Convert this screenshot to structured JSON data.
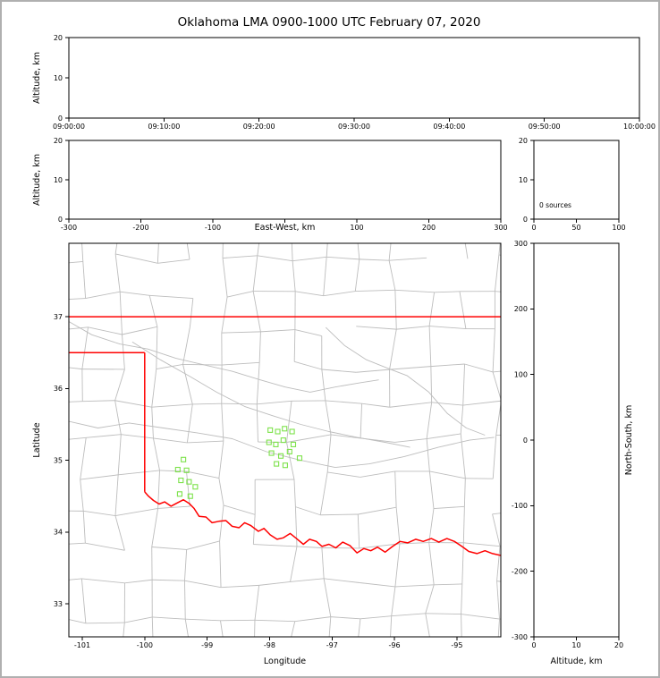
{
  "title": "Oklahoma LMA 0900-1000 UTC February 07, 2020",
  "colors": {
    "axis": "#000000",
    "county": "#bdbdbd",
    "state_border": "#ff0000",
    "marker": "#7de24b",
    "figure_border": "#b0b0b0"
  },
  "chart_data": [
    {
      "id": "time_height",
      "type": "scatter",
      "ylabel": "Altitude, km",
      "xlim": [
        0,
        3600
      ],
      "x_ticks": [
        0,
        600,
        1200,
        1800,
        2400,
        3000,
        3600
      ],
      "x_tick_labels": [
        "09:00:00",
        "09:10:00",
        "09:20:00",
        "09:30:00",
        "09:40:00",
        "09:50:00",
        "10:00:00"
      ],
      "ylim": [
        0,
        20
      ],
      "y_ticks": [
        0,
        10,
        20
      ],
      "points": []
    },
    {
      "id": "ew_height",
      "type": "scatter",
      "xlabel": "East-West, km",
      "xlabel_inline": true,
      "ylabel": "Altitude, km",
      "xlim": [
        -300,
        300
      ],
      "x_ticks": [
        -300,
        -200,
        -100,
        0,
        100,
        200,
        300
      ],
      "x_tick_labels": [
        "-300",
        "-200",
        "-100",
        "",
        "100",
        "200",
        "300"
      ],
      "ylim": [
        0,
        20
      ],
      "y_ticks": [
        0,
        10,
        20
      ],
      "points": []
    },
    {
      "id": "alt_hist",
      "type": "histogram",
      "annotation": "0 sources",
      "xlim": [
        0,
        100
      ],
      "x_ticks": [
        0,
        50,
        100
      ],
      "ylim": [
        0,
        20
      ],
      "y_ticks": [
        0,
        10,
        20
      ],
      "values": []
    },
    {
      "id": "map",
      "type": "scatter",
      "xlabel": "Longitude",
      "ylabel": "Latitude",
      "xlim": [
        -101.215,
        -94.297
      ],
      "ylim": [
        32.54,
        38.023
      ],
      "x_ticks": [
        -101,
        -100,
        -99,
        -98,
        -97,
        -96,
        -95
      ],
      "y_ticks": [
        33,
        34,
        35,
        36,
        37
      ],
      "points": [
        [
          -99.38,
          35.01
        ],
        [
          -99.47,
          34.87
        ],
        [
          -99.33,
          34.86
        ],
        [
          -99.42,
          34.72
        ],
        [
          -99.29,
          34.7
        ],
        [
          -99.19,
          34.63
        ],
        [
          -99.44,
          34.53
        ],
        [
          -99.27,
          34.5
        ],
        [
          -97.99,
          35.42
        ],
        [
          -97.87,
          35.4
        ],
        [
          -97.76,
          35.44
        ],
        [
          -97.64,
          35.4
        ],
        [
          -98.01,
          35.25
        ],
        [
          -97.9,
          35.22
        ],
        [
          -97.78,
          35.28
        ],
        [
          -97.62,
          35.22
        ],
        [
          -97.97,
          35.1
        ],
        [
          -97.82,
          35.06
        ],
        [
          -97.68,
          35.12
        ],
        [
          -97.52,
          35.03
        ],
        [
          -97.89,
          34.95
        ],
        [
          -97.75,
          34.93
        ]
      ],
      "state_border": [
        [
          [
            -101.215,
            37.0
          ],
          [
            -94.297,
            37.0
          ]
        ],
        [
          [
            -101.215,
            36.5
          ],
          [
            -100.0,
            36.5
          ]
        ],
        [
          [
            -100.0,
            36.5
          ],
          [
            -100.0,
            34.56
          ]
        ],
        [
          [
            -100.0,
            34.56
          ],
          [
            -99.94,
            34.5
          ],
          [
            -99.86,
            34.44
          ],
          [
            -99.77,
            34.39
          ],
          [
            -99.68,
            34.42
          ],
          [
            -99.58,
            34.36
          ],
          [
            -99.47,
            34.41
          ],
          [
            -99.38,
            34.45
          ],
          [
            -99.29,
            34.4
          ],
          [
            -99.21,
            34.33
          ],
          [
            -99.13,
            34.22
          ],
          [
            -99.02,
            34.21
          ],
          [
            -98.92,
            34.13
          ],
          [
            -98.81,
            34.15
          ],
          [
            -98.7,
            34.16
          ],
          [
            -98.6,
            34.08
          ],
          [
            -98.49,
            34.06
          ],
          [
            -98.4,
            34.13
          ],
          [
            -98.3,
            34.09
          ],
          [
            -98.18,
            34.01
          ],
          [
            -98.09,
            34.05
          ],
          [
            -97.99,
            33.96
          ],
          [
            -97.88,
            33.9
          ],
          [
            -97.78,
            33.92
          ],
          [
            -97.67,
            33.98
          ],
          [
            -97.57,
            33.91
          ],
          [
            -97.46,
            33.83
          ],
          [
            -97.36,
            33.9
          ],
          [
            -97.25,
            33.87
          ],
          [
            -97.16,
            33.8
          ],
          [
            -97.05,
            33.83
          ],
          [
            -96.94,
            33.78
          ],
          [
            -96.83,
            33.86
          ],
          [
            -96.71,
            33.81
          ],
          [
            -96.6,
            33.71
          ],
          [
            -96.49,
            33.77
          ],
          [
            -96.38,
            33.74
          ],
          [
            -96.27,
            33.79
          ],
          [
            -96.15,
            33.72
          ],
          [
            -96.03,
            33.8
          ],
          [
            -95.91,
            33.87
          ],
          [
            -95.79,
            33.85
          ],
          [
            -95.66,
            33.9
          ],
          [
            -95.54,
            33.87
          ],
          [
            -95.41,
            33.91
          ],
          [
            -95.29,
            33.86
          ],
          [
            -95.16,
            33.91
          ],
          [
            -95.04,
            33.87
          ],
          [
            -94.92,
            33.8
          ],
          [
            -94.81,
            33.73
          ],
          [
            -94.68,
            33.7
          ],
          [
            -94.55,
            33.74
          ],
          [
            -94.43,
            33.7
          ],
          [
            -94.28,
            33.67
          ]
        ]
      ],
      "rivers": [
        [
          [
            -101.25,
            36.95
          ],
          [
            -100.85,
            36.75
          ],
          [
            -100.4,
            36.62
          ],
          [
            -99.95,
            36.55
          ],
          [
            -99.5,
            36.42
          ],
          [
            -99.05,
            36.33
          ],
          [
            -98.6,
            36.24
          ],
          [
            -98.15,
            36.12
          ],
          [
            -97.75,
            36.02
          ],
          [
            -97.35,
            35.95
          ],
          [
            -96.95,
            36.02
          ],
          [
            -96.55,
            36.08
          ],
          [
            -96.25,
            36.12
          ]
        ],
        [
          [
            -97.1,
            36.85
          ],
          [
            -96.8,
            36.6
          ],
          [
            -96.45,
            36.4
          ],
          [
            -96.1,
            36.28
          ],
          [
            -95.8,
            36.18
          ],
          [
            -95.45,
            35.95
          ],
          [
            -95.15,
            35.65
          ],
          [
            -94.85,
            35.45
          ],
          [
            -94.55,
            35.35
          ]
        ],
        [
          [
            -100.2,
            36.65
          ],
          [
            -99.75,
            36.4
          ],
          [
            -99.3,
            36.18
          ],
          [
            -98.85,
            35.95
          ],
          [
            -98.4,
            35.75
          ],
          [
            -97.95,
            35.62
          ],
          [
            -97.5,
            35.5
          ],
          [
            -97.05,
            35.4
          ],
          [
            -96.6,
            35.32
          ],
          [
            -96.15,
            35.25
          ],
          [
            -95.75,
            35.18
          ]
        ],
        [
          [
            -101.25,
            35.55
          ],
          [
            -100.75,
            35.45
          ],
          [
            -100.25,
            35.52
          ],
          [
            -99.7,
            35.45
          ],
          [
            -99.15,
            35.38
          ],
          [
            -98.6,
            35.3
          ],
          [
            -98.05,
            35.12
          ],
          [
            -97.5,
            35.0
          ],
          [
            -96.95,
            34.9
          ],
          [
            -96.4,
            34.95
          ],
          [
            -95.85,
            35.05
          ],
          [
            -95.3,
            35.18
          ],
          [
            -94.8,
            35.28
          ],
          [
            -94.4,
            35.32
          ]
        ]
      ],
      "county_grid": {
        "lon_start": -101.5,
        "lon_end": -93.8,
        "lon_step": 0.55,
        "lat_start": 32.3,
        "lat_end": 38.3,
        "lat_step": 0.5,
        "jitter_lon": 0.18,
        "jitter_lat": 0.15,
        "keep_prob": 0.82,
        "seed": 42
      }
    },
    {
      "id": "ns_height",
      "type": "scatter",
      "xlabel": "Altitude, km",
      "ylabel": "North-South, km",
      "ylabel_side": "right",
      "xlim": [
        0,
        20
      ],
      "x_ticks": [
        0,
        10,
        20
      ],
      "ylim": [
        -300,
        300
      ],
      "y_ticks": [
        300,
        200,
        100,
        0,
        -100,
        -200,
        -300
      ],
      "points": []
    }
  ]
}
